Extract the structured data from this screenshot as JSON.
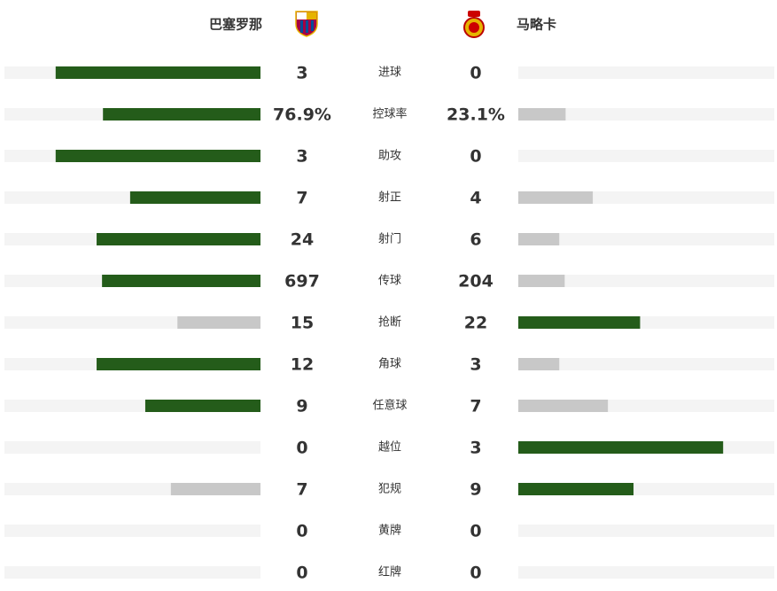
{
  "header": {
    "home_team": "巴塞罗那",
    "away_team": "马略卡"
  },
  "colors": {
    "leader": "#245c1a",
    "trailer": "#c8c8c8",
    "track": "#f4f4f4"
  },
  "stats": [
    {
      "label": "进球",
      "home": 3,
      "away": 0
    },
    {
      "label": "控球率",
      "home": 76.9,
      "away": 23.1,
      "home_label": "76.9%",
      "away_label": "23.1%"
    },
    {
      "label": "助攻",
      "home": 3,
      "away": 0
    },
    {
      "label": "射正",
      "home": 7,
      "away": 4
    },
    {
      "label": "射门",
      "home": 24,
      "away": 6
    },
    {
      "label": "传球",
      "home": 697,
      "away": 204
    },
    {
      "label": "抢断",
      "home": 15,
      "away": 22
    },
    {
      "label": "角球",
      "home": 12,
      "away": 3
    },
    {
      "label": "任意球",
      "home": 9,
      "away": 7
    },
    {
      "label": "越位",
      "home": 0,
      "away": 3
    },
    {
      "label": "犯规",
      "home": 7,
      "away": 9
    },
    {
      "label": "黄牌",
      "home": 0,
      "away": 0
    },
    {
      "label": "红牌",
      "home": 0,
      "away": 0
    }
  ]
}
